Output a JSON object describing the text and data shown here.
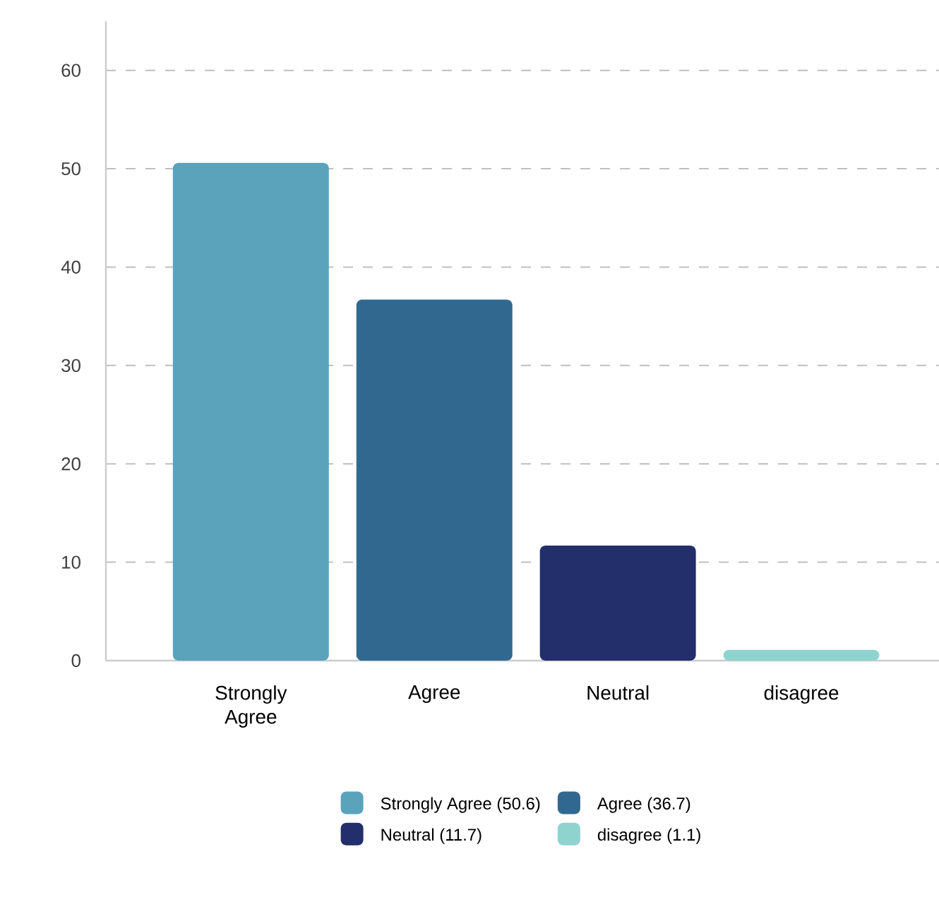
{
  "chart_data": {
    "type": "bar",
    "categories": [
      "Strongly Agree",
      "Agree",
      "Neutral",
      "disagree"
    ],
    "series": [
      {
        "name": "Strongly Agree (50.6)",
        "color": "#5aa3bb",
        "values": [
          50.6,
          null,
          null,
          null
        ]
      },
      {
        "name": "Agree (36.7)",
        "color": "#31688f",
        "values": [
          null,
          36.7,
          null,
          null
        ]
      },
      {
        "name": "Neutral (11.7)",
        "color": "#232f6b",
        "values": [
          null,
          null,
          11.7,
          null
        ]
      },
      {
        "name": "disagree (1.1)",
        "color": "#8fd3cf",
        "values": [
          null,
          null,
          null,
          1.1
        ]
      }
    ],
    "ylim": [
      0,
      65
    ],
    "yticks": [
      0,
      10,
      20,
      30,
      40,
      50,
      60
    ],
    "grid": "y",
    "legend": "bottom"
  }
}
